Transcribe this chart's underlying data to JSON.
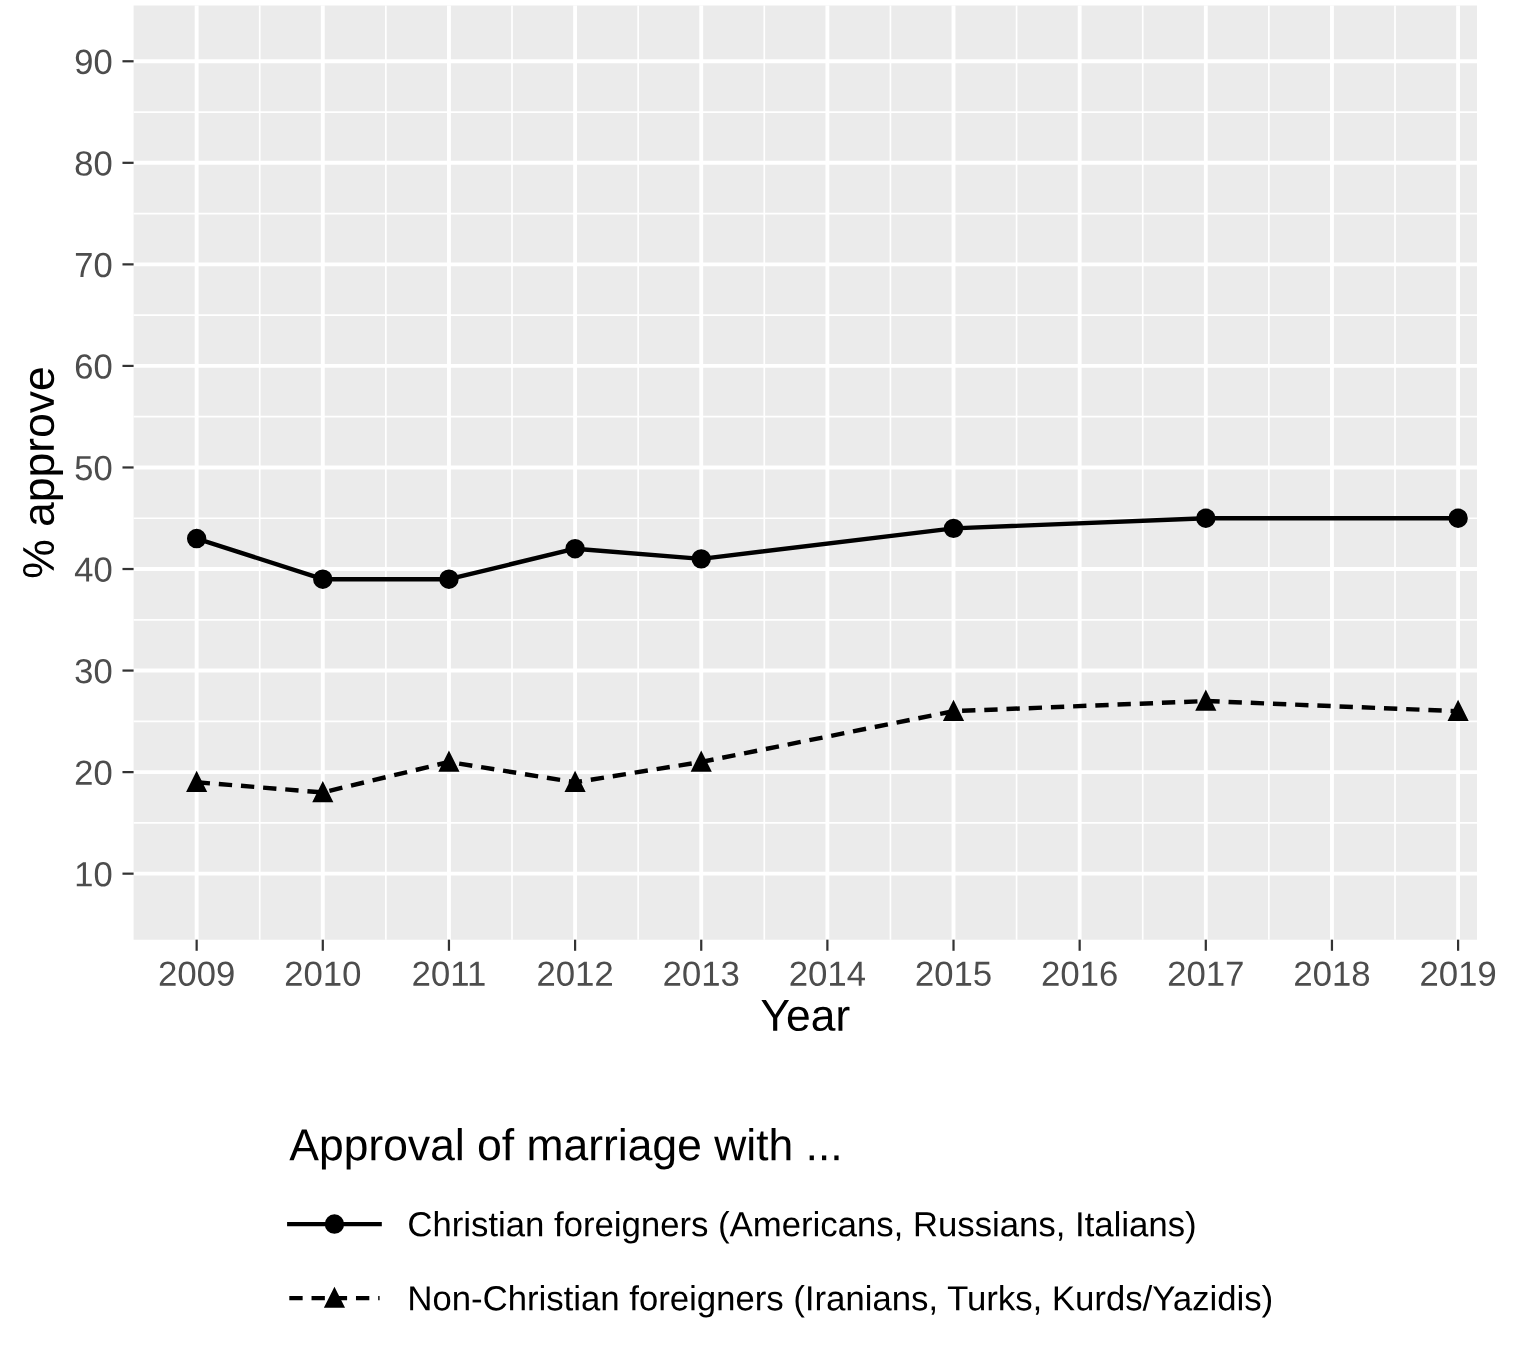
{
  "chart_data": {
    "type": "line",
    "xlabel": "Year",
    "ylabel": "% approve",
    "legend_title": "Approval of marriage with ...",
    "x": [
      2009,
      2010,
      2011,
      2012,
      2013,
      2015,
      2017,
      2019
    ],
    "series": [
      {
        "name": "Christian foreigners (Americans, Russians, Italians)",
        "color": "#000000",
        "marker": "circle",
        "line_style": "solid",
        "values": [
          43,
          39,
          39,
          42,
          41,
          44,
          45,
          45
        ]
      },
      {
        "name": "Non-Christian foreigners (Iranians, Turks, Kurds/Yazidis)",
        "color": "#000000",
        "marker": "triangle",
        "line_style": "dashed",
        "values": [
          19,
          18,
          21,
          19,
          21,
          26,
          27,
          26
        ]
      }
    ],
    "xlim": [
      2008.5,
      2019.15
    ],
    "ylim": [
      3.5,
      95.5
    ],
    "xticks": [
      2009,
      2010,
      2011,
      2012,
      2013,
      2014,
      2015,
      2016,
      2017,
      2018,
      2019
    ],
    "yticks": [
      10,
      20,
      30,
      40,
      50,
      60,
      70,
      80,
      90
    ],
    "grid": true,
    "legend": "bottom"
  }
}
